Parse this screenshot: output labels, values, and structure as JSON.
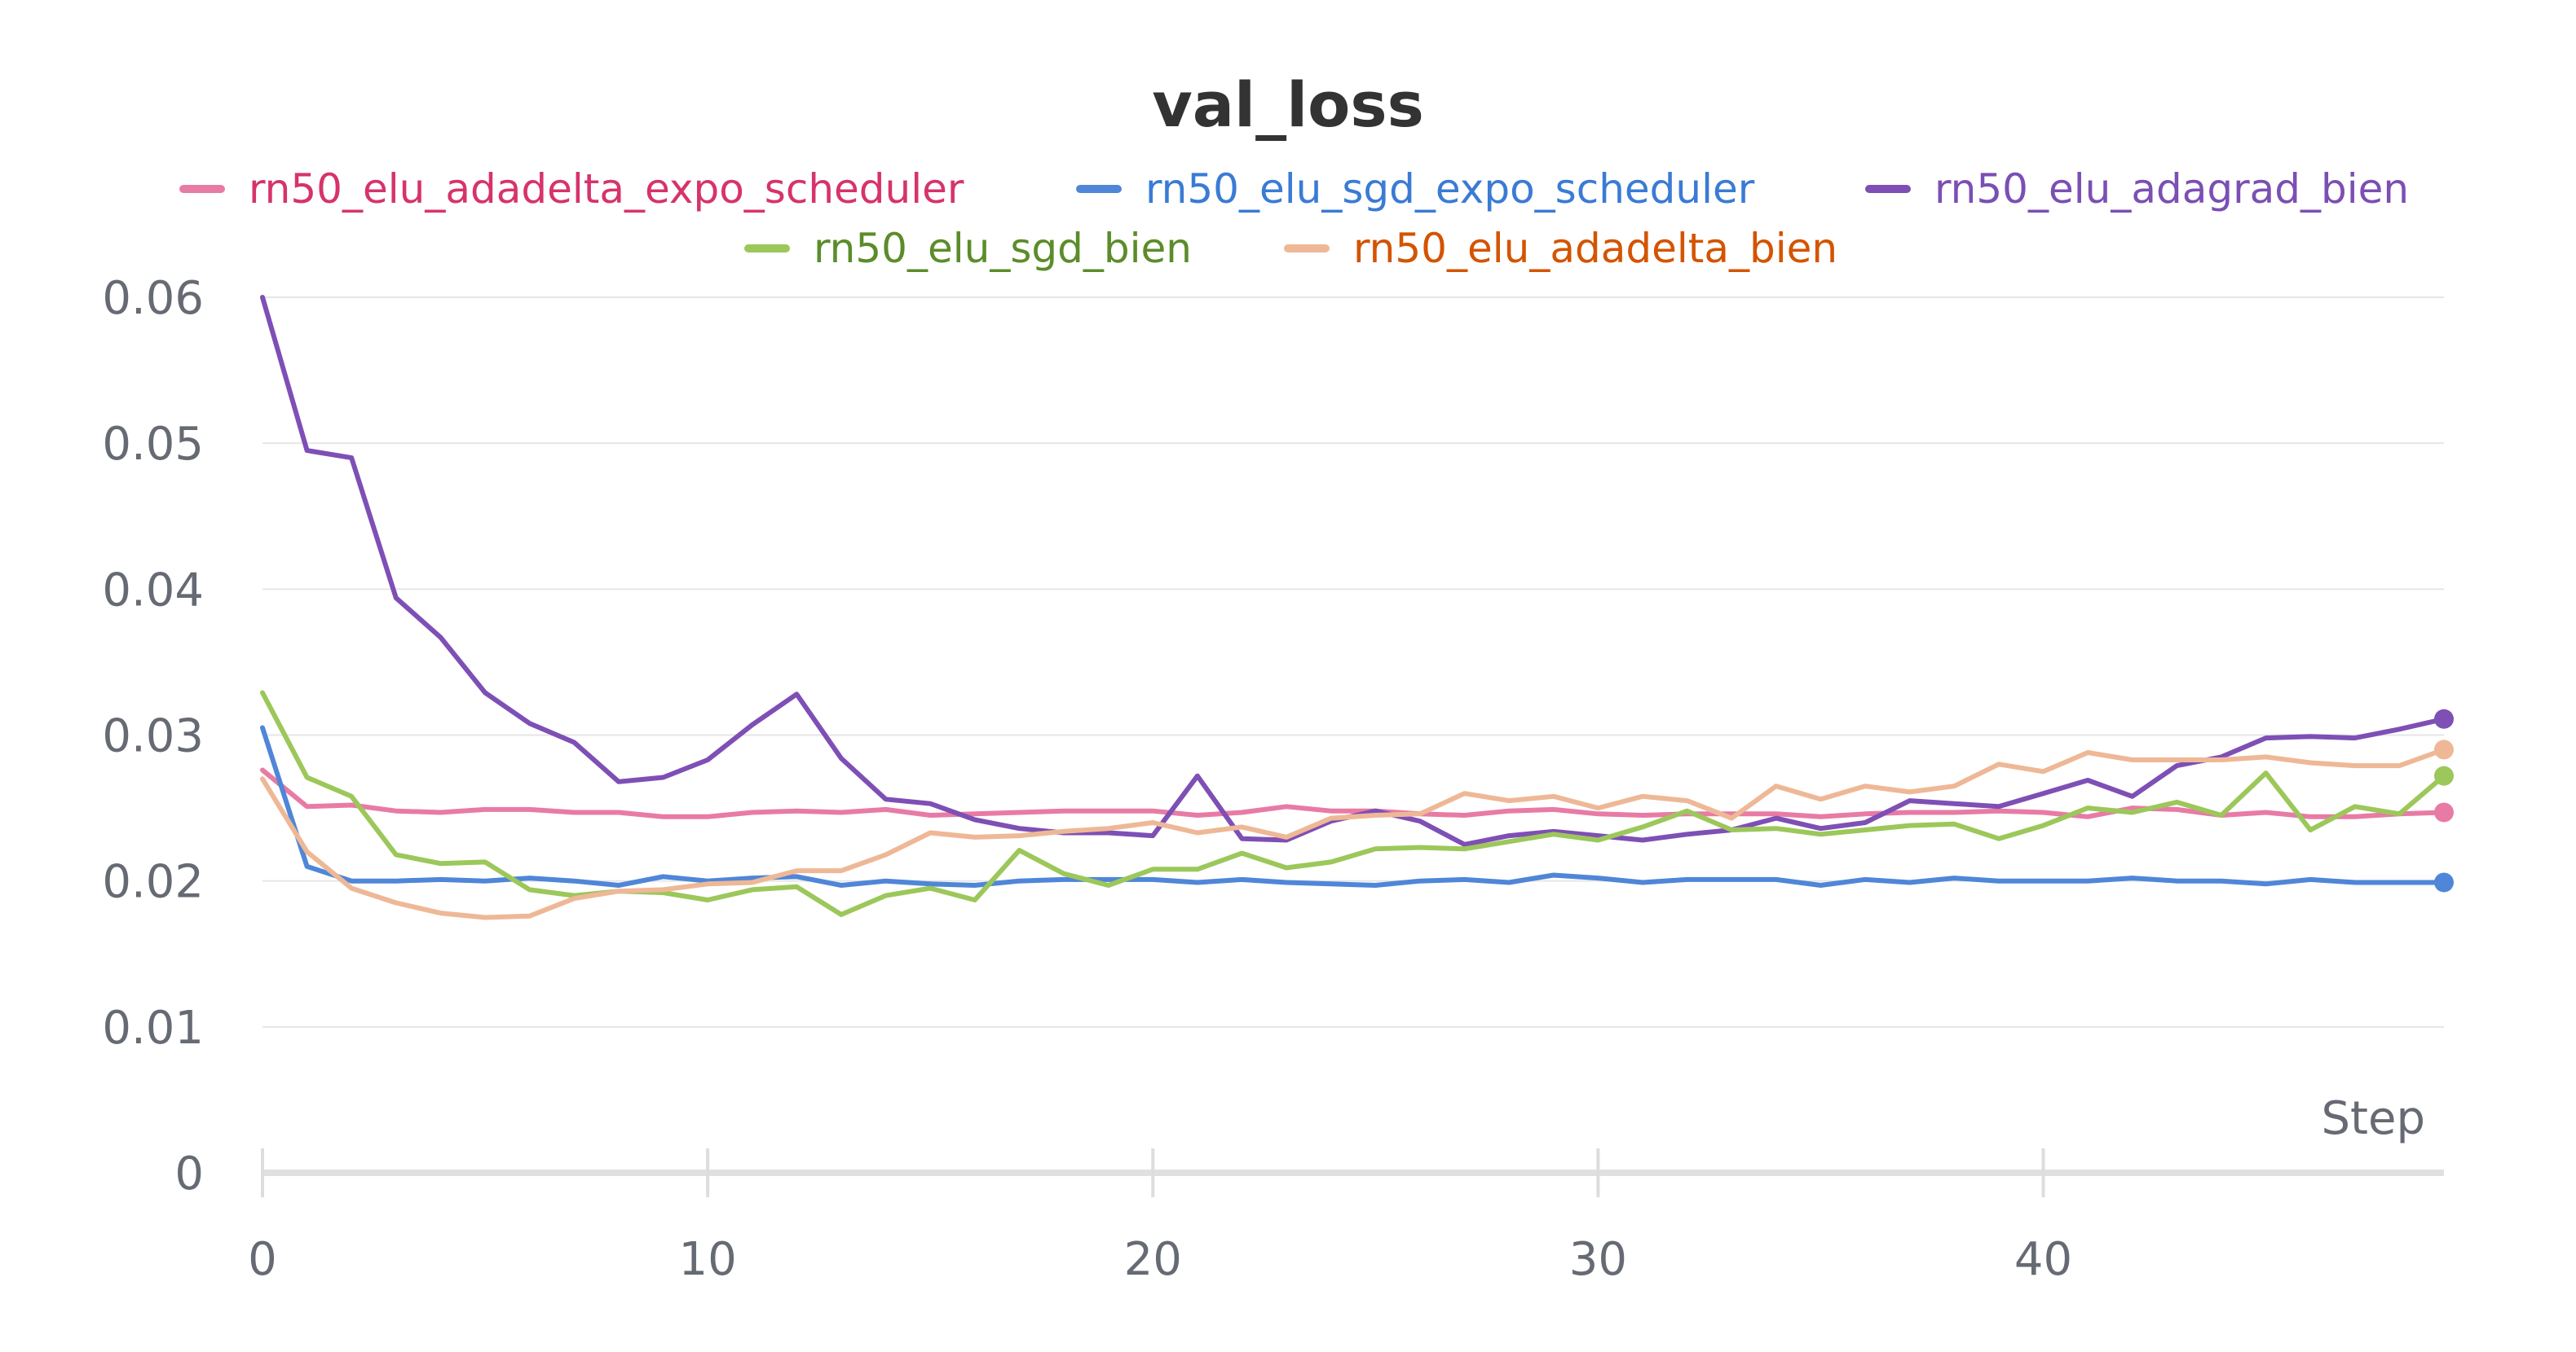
{
  "chart_data": {
    "type": "line",
    "title": "val_loss",
    "xlabel": "Step",
    "ylabel": "",
    "xlim": [
      0,
      49
    ],
    "ylim": [
      0,
      0.06
    ],
    "x_ticks": [
      "0",
      "10",
      "20",
      "30",
      "40"
    ],
    "x_tick_values": [
      0,
      10,
      20,
      30,
      40
    ],
    "y_ticks": [
      "0",
      "0.01",
      "0.02",
      "0.03",
      "0.04",
      "0.05",
      "0.06"
    ],
    "y_tick_values": [
      0,
      0.01,
      0.02,
      0.03,
      0.04,
      0.05,
      0.06
    ],
    "grid": true,
    "legend_position": "top",
    "x": [
      0,
      1,
      2,
      3,
      4,
      5,
      6,
      7,
      8,
      9,
      10,
      11,
      12,
      13,
      14,
      15,
      16,
      17,
      18,
      19,
      20,
      21,
      22,
      23,
      24,
      25,
      26,
      27,
      28,
      29,
      30,
      31,
      32,
      33,
      34,
      35,
      36,
      37,
      38,
      39,
      40,
      41,
      42,
      43,
      44,
      45,
      46,
      47,
      48,
      49
    ],
    "series": [
      {
        "name": "rn50_elu_adadelta_expo_scheduler",
        "color": "#e87ba5",
        "text_color": "#d6336c",
        "values": [
          0.0276,
          0.0251,
          0.0252,
          0.0248,
          0.0247,
          0.0249,
          0.0249,
          0.0247,
          0.0247,
          0.0244,
          0.0244,
          0.0247,
          0.0248,
          0.0247,
          0.0249,
          0.0245,
          0.0246,
          0.0247,
          0.0248,
          0.0248,
          0.0248,
          0.0245,
          0.0247,
          0.0251,
          0.0248,
          0.0248,
          0.0246,
          0.0245,
          0.0248,
          0.0249,
          0.0246,
          0.0245,
          0.0246,
          0.0246,
          0.0246,
          0.0244,
          0.0246,
          0.0247,
          0.0247,
          0.0248,
          0.0247,
          0.0244,
          0.025,
          0.0249,
          0.0245,
          0.0247,
          0.0244,
          0.0244,
          0.0246,
          0.0247
        ]
      },
      {
        "name": "rn50_elu_sgd_expo_scheduler",
        "color": "#4f86d8",
        "text_color": "#3a7bd5",
        "values": [
          0.0305,
          0.021,
          0.02,
          0.02,
          0.0201,
          0.02,
          0.0202,
          0.02,
          0.0197,
          0.0203,
          0.02,
          0.0202,
          0.0203,
          0.0197,
          0.02,
          0.0198,
          0.0197,
          0.02,
          0.0201,
          0.0201,
          0.0201,
          0.0199,
          0.0201,
          0.0199,
          0.0198,
          0.0197,
          0.02,
          0.0201,
          0.0199,
          0.0204,
          0.0202,
          0.0199,
          0.0201,
          0.0201,
          0.0201,
          0.0197,
          0.0201,
          0.0199,
          0.0202,
          0.02,
          0.02,
          0.02,
          0.0202,
          0.02,
          0.02,
          0.0198,
          0.0201,
          0.0199,
          0.0199,
          0.0199
        ]
      },
      {
        "name": "rn50_elu_adagrad_bien",
        "color": "#7e4fb5",
        "text_color": "#7b4fb3",
        "values": [
          0.06,
          0.0495,
          0.049,
          0.0394,
          0.0367,
          0.0329,
          0.0308,
          0.0295,
          0.0268,
          0.0271,
          0.0283,
          0.0307,
          0.0328,
          0.0284,
          0.0256,
          0.0253,
          0.0242,
          0.0236,
          0.0233,
          0.0233,
          0.0231,
          0.0272,
          0.0229,
          0.0228,
          0.0241,
          0.0248,
          0.0241,
          0.0225,
          0.0231,
          0.0234,
          0.0231,
          0.0228,
          0.0232,
          0.0235,
          0.0243,
          0.0236,
          0.024,
          0.0255,
          0.0253,
          0.0251,
          0.026,
          0.0269,
          0.0258,
          0.0279,
          0.0285,
          0.0298,
          0.0299,
          0.0298,
          0.0304,
          0.0311
        ]
      },
      {
        "name": "rn50_elu_sgd_bien",
        "color": "#9cc75a",
        "text_color": "#5b8c2a",
        "values": [
          0.0329,
          0.0271,
          0.0258,
          0.0218,
          0.0212,
          0.0213,
          0.0194,
          0.019,
          0.0193,
          0.0192,
          0.0187,
          0.0194,
          0.0196,
          0.0177,
          0.019,
          0.0195,
          0.0187,
          0.0221,
          0.0205,
          0.0197,
          0.0208,
          0.0208,
          0.0219,
          0.0209,
          0.0213,
          0.0222,
          0.0223,
          0.0222,
          0.0227,
          0.0232,
          0.0228,
          0.0237,
          0.0248,
          0.0235,
          0.0236,
          0.0232,
          0.0235,
          0.0238,
          0.0239,
          0.0229,
          0.0238,
          0.025,
          0.0247,
          0.0254,
          0.0245,
          0.0274,
          0.0235,
          0.0251,
          0.0246,
          0.0272
        ]
      },
      {
        "name": "rn50_elu_adadelta_bien",
        "color": "#eeb896",
        "text_color": "#d35400",
        "values": [
          0.027,
          0.022,
          0.0195,
          0.0185,
          0.0178,
          0.0175,
          0.0176,
          0.0188,
          0.0193,
          0.0194,
          0.0198,
          0.0199,
          0.0207,
          0.0207,
          0.0218,
          0.0233,
          0.023,
          0.0231,
          0.0234,
          0.0236,
          0.024,
          0.0233,
          0.0237,
          0.023,
          0.0243,
          0.0245,
          0.0246,
          0.026,
          0.0255,
          0.0258,
          0.025,
          0.0258,
          0.0255,
          0.0243,
          0.0265,
          0.0256,
          0.0265,
          0.0261,
          0.0265,
          0.028,
          0.0275,
          0.0288,
          0.0283,
          0.0283,
          0.0283,
          0.0285,
          0.0281,
          0.0279,
          0.0279,
          0.029
        ]
      }
    ]
  }
}
